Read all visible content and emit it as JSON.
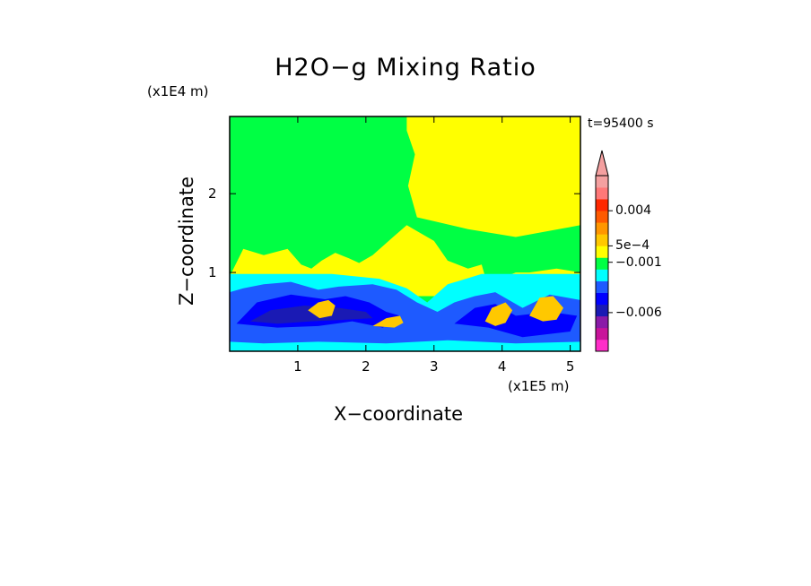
{
  "chart_data": {
    "type": "heatmap",
    "title": "H2O−g Mixing Ratio",
    "xlabel": "X−coordinate",
    "ylabel": "Z−coordinate",
    "x_multiplier": "(x1E5 m)",
    "y_multiplier": "(x1E4 m)",
    "time_label": "t=95400 s",
    "x_range": [
      0,
      5.15
    ],
    "y_range": [
      0,
      2.98
    ],
    "x_ticks": [
      {
        "value": 1,
        "label": "1"
      },
      {
        "value": 2,
        "label": "2"
      },
      {
        "value": 3,
        "label": "3"
      },
      {
        "value": 4,
        "label": "4"
      },
      {
        "value": 5,
        "label": "5"
      }
    ],
    "y_ticks": [
      {
        "value": 1,
        "label": "1"
      },
      {
        "value": 2,
        "label": "2"
      }
    ],
    "colorbar": {
      "colors": [
        "#ff2dc8",
        "#c8149a",
        "#8a1aa8",
        "#1a1ab4",
        "#0000ff",
        "#1e5aff",
        "#00ffff",
        "#00ff44",
        "#ffff00",
        "#ffc800",
        "#ff9600",
        "#ff5a00",
        "#ff2800",
        "#ff7878",
        "#f4a0a0"
      ],
      "extend_top": true,
      "tick_labels": [
        {
          "level": 12,
          "label": "0.004"
        },
        {
          "level": 9,
          "label": "5e−4"
        },
        {
          "level": 7.6,
          "label": "−0.001"
        },
        {
          "level": 3.3,
          "label": "−0.006"
        }
      ]
    },
    "regions": [
      {
        "level": 7,
        "points": [
          [
            0,
            0
          ],
          [
            5.15,
            0
          ],
          [
            5.15,
            2.98
          ],
          [
            0,
            2.98
          ]
        ]
      },
      {
        "level": 8,
        "points": [
          [
            2.6,
            2.98
          ],
          [
            5.15,
            2.98
          ],
          [
            5.15,
            1.6
          ],
          [
            4.2,
            1.45
          ],
          [
            3.5,
            1.55
          ],
          [
            3.0,
            1.65
          ],
          [
            2.75,
            1.7
          ],
          [
            2.62,
            2.1
          ],
          [
            2.72,
            2.5
          ],
          [
            2.6,
            2.8
          ]
        ]
      },
      {
        "level": 8,
        "points": [
          [
            0,
            0.95
          ],
          [
            0.2,
            1.3
          ],
          [
            0.5,
            1.22
          ],
          [
            0.85,
            1.3
          ],
          [
            1.05,
            1.1
          ],
          [
            1.2,
            1.05
          ],
          [
            1.35,
            1.15
          ],
          [
            1.55,
            1.25
          ],
          [
            1.75,
            1.18
          ],
          [
            1.9,
            1.12
          ],
          [
            2.1,
            1.22
          ],
          [
            2.4,
            1.45
          ],
          [
            2.6,
            1.6
          ],
          [
            2.8,
            1.5
          ],
          [
            3.0,
            1.4
          ],
          [
            3.2,
            1.15
          ],
          [
            3.5,
            1.05
          ],
          [
            3.7,
            1.1
          ],
          [
            3.75,
            0.95
          ],
          [
            3.9,
            0.9
          ],
          [
            4.2,
            1.0
          ],
          [
            4.4,
            1.0
          ],
          [
            4.8,
            1.05
          ],
          [
            5.15,
            1.0
          ],
          [
            5.15,
            0.7
          ],
          [
            0,
            0.7
          ]
        ]
      },
      {
        "level": 6,
        "points": [
          [
            0,
            0
          ],
          [
            5.15,
            0
          ],
          [
            5.15,
            0.98
          ],
          [
            4.6,
            0.98
          ],
          [
            3.7,
            0.98
          ],
          [
            3.2,
            0.85
          ],
          [
            2.9,
            0.62
          ],
          [
            2.6,
            0.8
          ],
          [
            2.2,
            0.92
          ],
          [
            1.5,
            0.98
          ],
          [
            0,
            0.98
          ]
        ]
      },
      {
        "level": 5,
        "points": [
          [
            0,
            0
          ],
          [
            5.15,
            0
          ],
          [
            5.15,
            0.65
          ],
          [
            4.7,
            0.72
          ],
          [
            4.3,
            0.55
          ],
          [
            3.9,
            0.75
          ],
          [
            3.6,
            0.7
          ],
          [
            3.3,
            0.62
          ],
          [
            3.05,
            0.5
          ],
          [
            2.75,
            0.62
          ],
          [
            2.45,
            0.78
          ],
          [
            2.1,
            0.85
          ],
          [
            1.6,
            0.82
          ],
          [
            1.3,
            0.78
          ],
          [
            0.9,
            0.88
          ],
          [
            0.5,
            0.85
          ],
          [
            0.2,
            0.8
          ],
          [
            0,
            0.75
          ]
        ]
      },
      {
        "level": 4,
        "points": [
          [
            0.1,
            0.35
          ],
          [
            0.4,
            0.62
          ],
          [
            0.9,
            0.72
          ],
          [
            1.4,
            0.66
          ],
          [
            1.7,
            0.7
          ],
          [
            2.05,
            0.62
          ],
          [
            2.3,
            0.5
          ],
          [
            2.5,
            0.45
          ],
          [
            2.25,
            0.3
          ],
          [
            1.8,
            0.38
          ],
          [
            1.3,
            0.32
          ],
          [
            0.7,
            0.3
          ]
        ]
      },
      {
        "level": 4,
        "points": [
          [
            3.3,
            0.35
          ],
          [
            3.6,
            0.55
          ],
          [
            3.9,
            0.6
          ],
          [
            4.2,
            0.45
          ],
          [
            4.7,
            0.5
          ],
          [
            5.1,
            0.45
          ],
          [
            5.0,
            0.25
          ],
          [
            4.3,
            0.18
          ],
          [
            3.8,
            0.3
          ]
        ]
      },
      {
        "level": 3,
        "points": [
          [
            0.3,
            0.38
          ],
          [
            0.6,
            0.52
          ],
          [
            1.1,
            0.58
          ],
          [
            1.6,
            0.55
          ],
          [
            2.0,
            0.5
          ],
          [
            2.1,
            0.42
          ],
          [
            1.7,
            0.4
          ],
          [
            1.2,
            0.38
          ],
          [
            0.7,
            0.35
          ]
        ]
      },
      {
        "level": 9,
        "points": [
          [
            1.15,
            0.52
          ],
          [
            1.3,
            0.62
          ],
          [
            1.45,
            0.65
          ],
          [
            1.55,
            0.58
          ],
          [
            1.5,
            0.45
          ],
          [
            1.32,
            0.42
          ]
        ]
      },
      {
        "level": 9,
        "points": [
          [
            2.1,
            0.32
          ],
          [
            2.3,
            0.42
          ],
          [
            2.5,
            0.45
          ],
          [
            2.55,
            0.36
          ],
          [
            2.42,
            0.3
          ]
        ]
      },
      {
        "level": 9,
        "points": [
          [
            3.75,
            0.38
          ],
          [
            3.85,
            0.55
          ],
          [
            4.05,
            0.62
          ],
          [
            4.15,
            0.52
          ],
          [
            4.05,
            0.36
          ],
          [
            3.9,
            0.32
          ]
        ]
      },
      {
        "level": 9,
        "points": [
          [
            4.4,
            0.45
          ],
          [
            4.55,
            0.68
          ],
          [
            4.75,
            0.7
          ],
          [
            4.9,
            0.55
          ],
          [
            4.8,
            0.4
          ],
          [
            4.6,
            0.38
          ]
        ]
      },
      {
        "level": 6,
        "points": [
          [
            0,
            0
          ],
          [
            5.15,
            0
          ],
          [
            5.15,
            0.12
          ],
          [
            4.2,
            0.1
          ],
          [
            3.2,
            0.14
          ],
          [
            2.3,
            0.1
          ],
          [
            1.3,
            0.12
          ],
          [
            0.5,
            0.1
          ],
          [
            0,
            0.12
          ]
        ]
      }
    ]
  }
}
